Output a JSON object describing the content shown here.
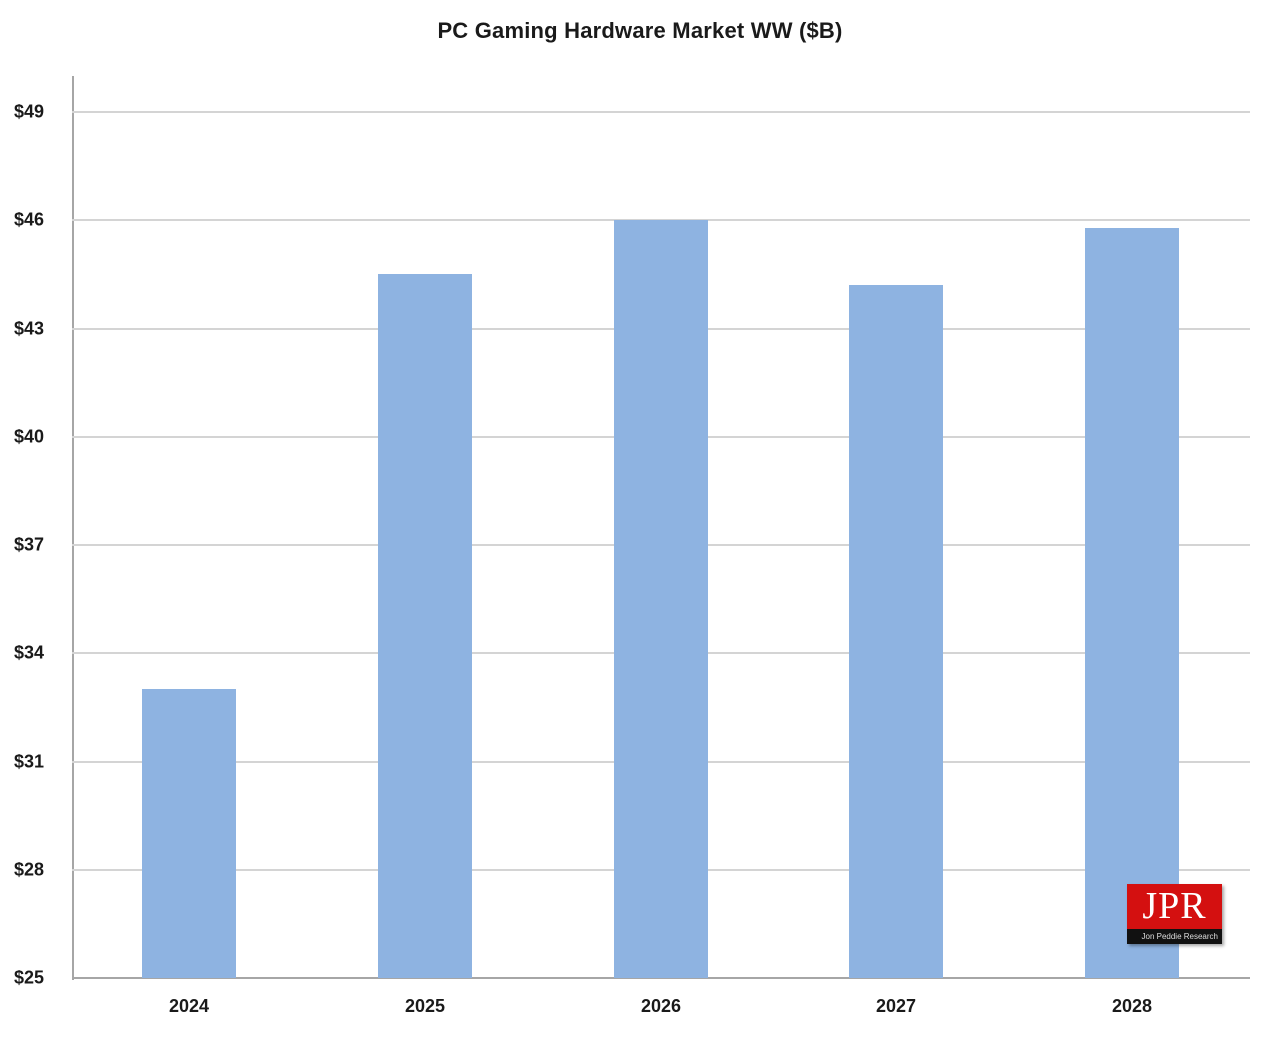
{
  "chart_data": {
    "type": "bar",
    "title": "PC Gaming  Hardware Market WW ($B)",
    "xlabel": "",
    "ylabel": "",
    "categories": [
      "2024",
      "2025",
      "2026",
      "2027",
      "2028"
    ],
    "values": [
      33.0,
      44.5,
      46.0,
      44.2,
      45.8
    ],
    "ylim": [
      25,
      50
    ],
    "yticks": [
      "$25",
      "$28",
      "$31",
      "$34",
      "$37",
      "$40",
      "$43",
      "$46",
      "$49"
    ],
    "ytick_values": [
      25,
      28,
      31,
      34,
      37,
      40,
      43,
      46,
      49
    ],
    "grid": true,
    "legend": null,
    "bar_color": "#8eb3e1"
  },
  "logo": {
    "text": "JPR",
    "subtext": "Jon Peddie Research",
    "color": "#d41010"
  }
}
